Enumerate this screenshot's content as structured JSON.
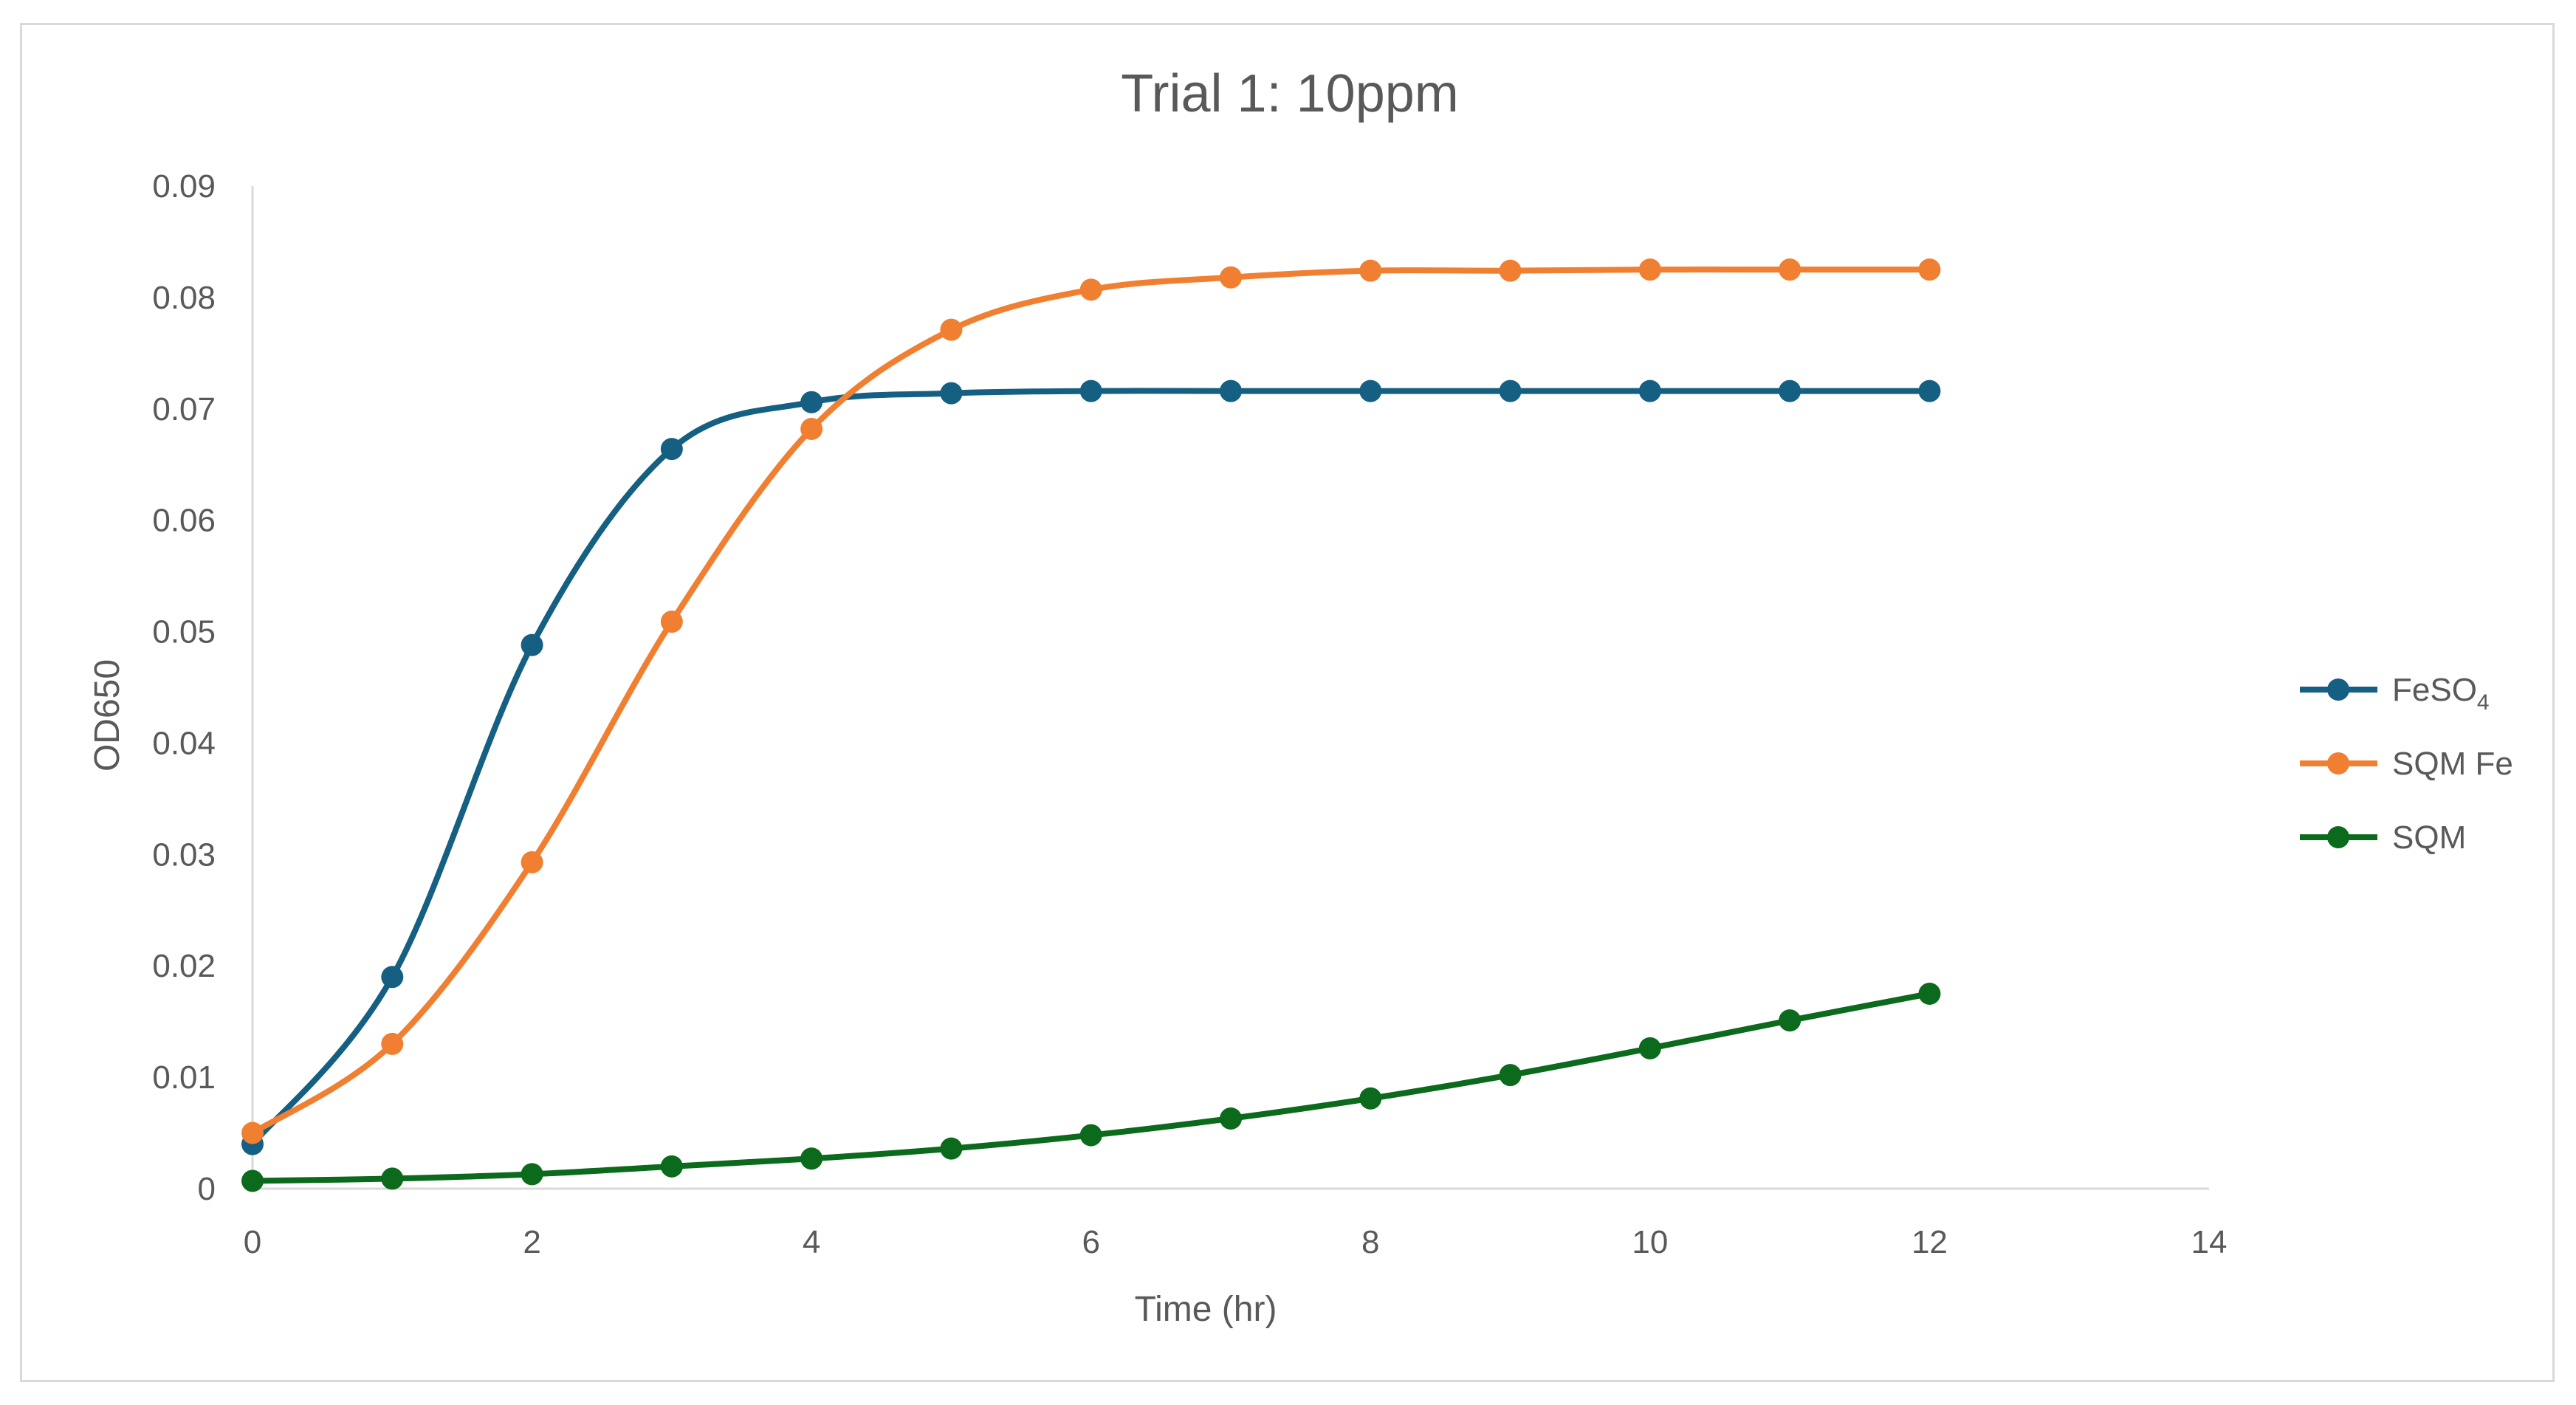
{
  "chart_data": {
    "type": "line",
    "title": "Trial 1: 10ppm",
    "xlabel": "Time (hr)",
    "ylabel": "OD650",
    "xlim": [
      0,
      14
    ],
    "ylim": [
      0,
      0.09
    ],
    "x_ticks": [
      "0",
      "2",
      "4",
      "6",
      "8",
      "10",
      "12",
      "14"
    ],
    "y_ticks": [
      "0",
      "0.01",
      "0.02",
      "0.03",
      "0.04",
      "0.05",
      "0.06",
      "0.07",
      "0.08",
      "0.09"
    ],
    "grid": false,
    "smooth": true,
    "legend_position": "right",
    "x": [
      0,
      1,
      2,
      3,
      4,
      5,
      6,
      7,
      8,
      9,
      10,
      11,
      12
    ],
    "series": [
      {
        "name": "FeSO4",
        "name_main": "FeSO",
        "name_sub": "4",
        "color": "#156082",
        "values": [
          0.004,
          0.019,
          0.0488,
          0.0664,
          0.0706,
          0.0714,
          0.0716,
          0.0716,
          0.0716,
          0.0716,
          0.0716,
          0.0716,
          0.0716
        ]
      },
      {
        "name": "SQM Fe",
        "name_main": "SQM Fe",
        "name_sub": "",
        "color": "#f07f31",
        "values": [
          0.005,
          0.013,
          0.0293,
          0.0509,
          0.0682,
          0.0771,
          0.0807,
          0.0818,
          0.0824,
          0.0824,
          0.0825,
          0.0825,
          0.0825
        ]
      },
      {
        "name": "SQM",
        "name_main": "SQM",
        "name_sub": "",
        "color": "#0b6a1c",
        "values": [
          0.0007,
          0.0009,
          0.0013,
          0.002,
          0.0027,
          0.0036,
          0.0048,
          0.0063,
          0.0081,
          0.0102,
          0.0126,
          0.0151,
          0.0175
        ]
      }
    ],
    "axis_color": "#d9d9d9",
    "text_color": "#595959"
  }
}
